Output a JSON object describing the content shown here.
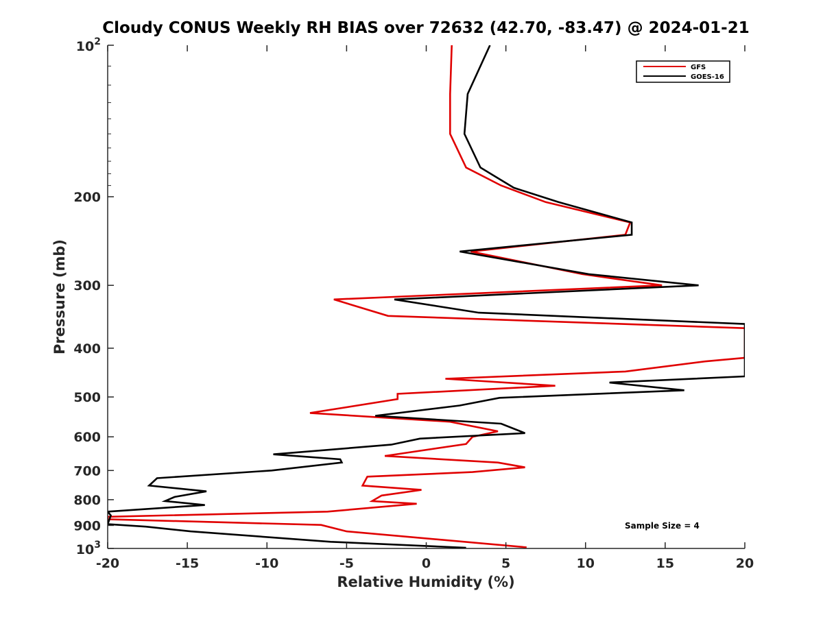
{
  "chart_data": {
    "type": "line",
    "title": "Cloudy CONUS Weekly RH BIAS over 72632 (42.70, -83.47) @ 2024-01-21",
    "xlabel": "Relative Humidity (%)",
    "ylabel": "Pressure (mb)",
    "xlim": [
      -20,
      20
    ],
    "ylim": [
      1000,
      100
    ],
    "y_scale": "log",
    "y_reversed": true,
    "grid": false,
    "legend_position": "top-right",
    "annotation": "Sample Size = 4",
    "x_ticks": [
      "-20",
      "-15",
      "-10",
      "-5",
      "0",
      "5",
      "10",
      "15",
      "20"
    ],
    "y_ticks": [
      {
        "value": 100,
        "base": "10",
        "exp": "2"
      },
      {
        "value": 200,
        "label": "200"
      },
      {
        "value": 300,
        "label": "300"
      },
      {
        "value": 400,
        "label": "400"
      },
      {
        "value": 500,
        "label": "500"
      },
      {
        "value": 600,
        "label": "600"
      },
      {
        "value": 700,
        "label": "700"
      },
      {
        "value": 800,
        "label": "800"
      },
      {
        "value": 900,
        "label": "900"
      },
      {
        "value": 1000,
        "base": "10",
        "exp": "3"
      }
    ],
    "series": [
      {
        "name": "GFS",
        "color": "#e00000",
        "points": [
          [
            1.6,
            100
          ],
          [
            1.5,
            125
          ],
          [
            1.5,
            150
          ],
          [
            2.5,
            175
          ],
          [
            4.7,
            190
          ],
          [
            7.5,
            205
          ],
          [
            12.8,
            225
          ],
          [
            12.5,
            238
          ],
          [
            2.8,
            257
          ],
          [
            9.8,
            285
          ],
          [
            14.8,
            300
          ],
          [
            -5.8,
            320
          ],
          [
            -2.4,
            345
          ],
          [
            20,
            365
          ],
          [
            20,
            418
          ],
          [
            17.5,
            425
          ],
          [
            12.5,
            445
          ],
          [
            1.2,
            460
          ],
          [
            8.1,
            475
          ],
          [
            -1.8,
            493
          ],
          [
            -1.8,
            505
          ],
          [
            -7.3,
            538
          ],
          [
            1.5,
            560
          ],
          [
            4.5,
            585
          ],
          [
            2.9,
            600
          ],
          [
            2.5,
            620
          ],
          [
            -2.6,
            655
          ],
          [
            4.5,
            675
          ],
          [
            6.2,
            690
          ],
          [
            2.9,
            705
          ],
          [
            -3.7,
            720
          ],
          [
            -4.0,
            750
          ],
          [
            -0.3,
            765
          ],
          [
            -2.8,
            785
          ],
          [
            -3.4,
            805
          ],
          [
            -0.6,
            815
          ],
          [
            -6.2,
            845
          ],
          [
            -20,
            865
          ],
          [
            -20,
            875
          ],
          [
            -6.6,
            898
          ],
          [
            -5.0,
            925
          ],
          [
            6.3,
            995
          ]
        ]
      },
      {
        "name": "GOES-16",
        "color": "#000000",
        "points": [
          [
            4.0,
            100
          ],
          [
            2.6,
            125
          ],
          [
            2.4,
            150
          ],
          [
            3.4,
            175
          ],
          [
            5.5,
            192
          ],
          [
            8.3,
            205
          ],
          [
            12.9,
            225
          ],
          [
            12.9,
            238
          ],
          [
            2.1,
            257
          ],
          [
            10.2,
            285
          ],
          [
            17.1,
            300
          ],
          [
            -2.0,
            320
          ],
          [
            3.3,
            340
          ],
          [
            20,
            358
          ],
          [
            20,
            455
          ],
          [
            11.5,
            468
          ],
          [
            16.2,
            485
          ],
          [
            4.6,
            502
          ],
          [
            2.1,
            520
          ],
          [
            -3.2,
            545
          ],
          [
            4.7,
            565
          ],
          [
            6.2,
            590
          ],
          [
            -0.4,
            605
          ],
          [
            -2.2,
            622
          ],
          [
            -9.6,
            650
          ],
          [
            -5.4,
            665
          ],
          [
            -5.3,
            675
          ],
          [
            -9.7,
            700
          ],
          [
            -16.9,
            725
          ],
          [
            -17.4,
            750
          ],
          [
            -13.8,
            770
          ],
          [
            -15.8,
            790
          ],
          [
            -16.4,
            805
          ],
          [
            -13.9,
            820
          ],
          [
            -20,
            845
          ],
          [
            -19.8,
            860
          ],
          [
            -20,
            895
          ],
          [
            -17.6,
            905
          ],
          [
            -14.8,
            925
          ],
          [
            -6.0,
            970
          ],
          [
            2.5,
            997
          ]
        ]
      }
    ]
  }
}
